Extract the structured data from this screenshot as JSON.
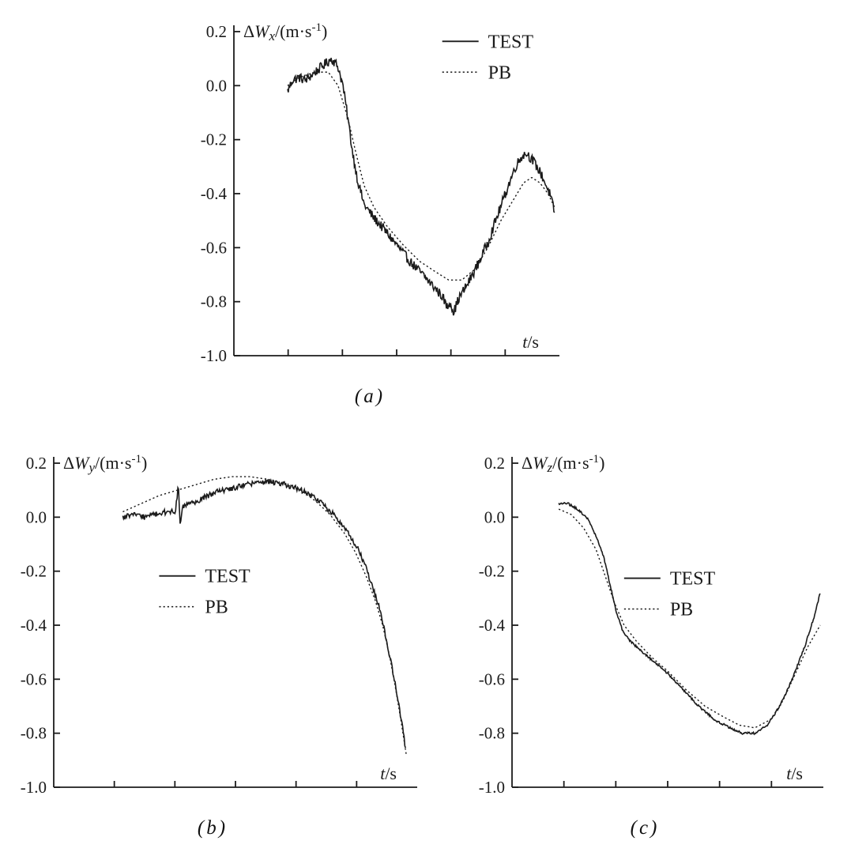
{
  "figure": {
    "background": "#ffffff",
    "line_color": "#1b1b1b"
  },
  "chart_data": [
    {
      "id": "a",
      "type": "line",
      "caption": "(a)",
      "ylabel": {
        "prefix": "Δ",
        "symbol": "W",
        "sub": "x",
        "units_pre": "/(m·s",
        "sup": "-1",
        "units_post": ")"
      },
      "xlabel": {
        "symbol": "t",
        "units": "/s"
      },
      "ylim": [
        -1.0,
        0.2
      ],
      "yticks": [
        "0.2",
        "0.0",
        "-0.2",
        "-0.4",
        "-0.6",
        "-0.8",
        "-1.0"
      ],
      "ytick_values": [
        0.2,
        0.0,
        -0.2,
        -0.4,
        -0.6,
        -0.8,
        -1.0
      ],
      "x_minor_ticks": 5,
      "grid": false,
      "legend": {
        "x": 0.64,
        "y": 0.03,
        "gap": 0.095
      },
      "series": [
        {
          "name": "TEST",
          "style": "solid",
          "noise": 0.018,
          "points": [
            [
              0.165,
              -0.02
            ],
            [
              0.18,
              0.02
            ],
            [
              0.2,
              0.03
            ],
            [
              0.22,
              0.02
            ],
            [
              0.25,
              0.05
            ],
            [
              0.28,
              0.08
            ],
            [
              0.3,
              0.1
            ],
            [
              0.32,
              0.07
            ],
            [
              0.335,
              0.0
            ],
            [
              0.35,
              -0.12
            ],
            [
              0.365,
              -0.25
            ],
            [
              0.38,
              -0.35
            ],
            [
              0.4,
              -0.44
            ],
            [
              0.43,
              -0.49
            ],
            [
              0.46,
              -0.53
            ],
            [
              0.5,
              -0.59
            ],
            [
              0.54,
              -0.65
            ],
            [
              0.58,
              -0.7
            ],
            [
              0.61,
              -0.74
            ],
            [
              0.64,
              -0.78
            ],
            [
              0.655,
              -0.82
            ],
            [
              0.665,
              -0.8
            ],
            [
              0.675,
              -0.84
            ],
            [
              0.69,
              -0.79
            ],
            [
              0.72,
              -0.73
            ],
            [
              0.75,
              -0.66
            ],
            [
              0.78,
              -0.58
            ],
            [
              0.81,
              -0.48
            ],
            [
              0.84,
              -0.38
            ],
            [
              0.865,
              -0.3
            ],
            [
              0.885,
              -0.26
            ],
            [
              0.9,
              -0.25
            ],
            [
              0.92,
              -0.28
            ],
            [
              0.945,
              -0.33
            ],
            [
              0.97,
              -0.4
            ],
            [
              0.985,
              -0.47
            ]
          ]
        },
        {
          "name": "PB",
          "style": "dotted",
          "noise": 0,
          "points": [
            [
              0.165,
              0.0
            ],
            [
              0.2,
              0.03
            ],
            [
              0.25,
              0.05
            ],
            [
              0.29,
              0.05
            ],
            [
              0.32,
              0.0
            ],
            [
              0.35,
              -0.12
            ],
            [
              0.375,
              -0.25
            ],
            [
              0.4,
              -0.37
            ],
            [
              0.43,
              -0.45
            ],
            [
              0.47,
              -0.52
            ],
            [
              0.52,
              -0.59
            ],
            [
              0.57,
              -0.65
            ],
            [
              0.62,
              -0.69
            ],
            [
              0.66,
              -0.72
            ],
            [
              0.7,
              -0.72
            ],
            [
              0.74,
              -0.68
            ],
            [
              0.78,
              -0.6
            ],
            [
              0.82,
              -0.5
            ],
            [
              0.86,
              -0.42
            ],
            [
              0.89,
              -0.36
            ],
            [
              0.915,
              -0.34
            ],
            [
              0.94,
              -0.36
            ],
            [
              0.965,
              -0.4
            ],
            [
              0.985,
              -0.45
            ]
          ]
        }
      ]
    },
    {
      "id": "b",
      "type": "line",
      "caption": "(b)",
      "ylabel": {
        "prefix": "Δ",
        "symbol": "W",
        "sub": "y",
        "units_pre": "/(m·s",
        "sup": "-1",
        "units_post": ")"
      },
      "xlabel": {
        "symbol": "t",
        "units": "/s"
      },
      "ylim": [
        -1.0,
        0.2
      ],
      "yticks": [
        "0.2",
        "0.0",
        "-0.2",
        "-0.4",
        "-0.6",
        "-0.8",
        "-1.0"
      ],
      "ytick_values": [
        0.2,
        0.0,
        -0.2,
        -0.4,
        -0.6,
        -0.8,
        -1.0
      ],
      "x_minor_ticks": 5,
      "grid": false,
      "legend": {
        "x": 0.29,
        "y": 0.348,
        "gap": 0.095
      },
      "series": [
        {
          "name": "TEST",
          "style": "solid",
          "noise": 0.01,
          "points": [
            [
              0.19,
              0.0
            ],
            [
              0.22,
              0.01
            ],
            [
              0.25,
              0.0
            ],
            [
              0.28,
              0.01
            ],
            [
              0.31,
              0.02
            ],
            [
              0.335,
              0.02
            ],
            [
              0.343,
              0.12
            ],
            [
              0.348,
              -0.03
            ],
            [
              0.355,
              0.04
            ],
            [
              0.38,
              0.05
            ],
            [
              0.41,
              0.07
            ],
            [
              0.44,
              0.09
            ],
            [
              0.47,
              0.1
            ],
            [
              0.5,
              0.11
            ],
            [
              0.53,
              0.12
            ],
            [
              0.56,
              0.13
            ],
            [
              0.6,
              0.13
            ],
            [
              0.64,
              0.12
            ],
            [
              0.68,
              0.1
            ],
            [
              0.71,
              0.08
            ],
            [
              0.74,
              0.05
            ],
            [
              0.77,
              0.01
            ],
            [
              0.8,
              -0.04
            ],
            [
              0.83,
              -0.1
            ],
            [
              0.855,
              -0.17
            ],
            [
              0.875,
              -0.25
            ],
            [
              0.895,
              -0.33
            ],
            [
              0.91,
              -0.42
            ],
            [
              0.925,
              -0.52
            ],
            [
              0.94,
              -0.62
            ],
            [
              0.95,
              -0.7
            ],
            [
              0.96,
              -0.78
            ],
            [
              0.968,
              -0.86
            ]
          ]
        },
        {
          "name": "PB",
          "style": "dotted",
          "noise": 0,
          "points": [
            [
              0.19,
              0.02
            ],
            [
              0.24,
              0.05
            ],
            [
              0.29,
              0.08
            ],
            [
              0.34,
              0.1
            ],
            [
              0.39,
              0.12
            ],
            [
              0.44,
              0.14
            ],
            [
              0.49,
              0.15
            ],
            [
              0.54,
              0.15
            ],
            [
              0.59,
              0.14
            ],
            [
              0.64,
              0.12
            ],
            [
              0.68,
              0.1
            ],
            [
              0.72,
              0.06
            ],
            [
              0.76,
              0.01
            ],
            [
              0.8,
              -0.06
            ],
            [
              0.83,
              -0.13
            ],
            [
              0.86,
              -0.22
            ],
            [
              0.885,
              -0.31
            ],
            [
              0.905,
              -0.4
            ],
            [
              0.925,
              -0.52
            ],
            [
              0.94,
              -0.63
            ],
            [
              0.955,
              -0.75
            ],
            [
              0.97,
              -0.88
            ]
          ]
        }
      ]
    },
    {
      "id": "c",
      "type": "line",
      "caption": "(c)",
      "ylabel": {
        "prefix": "Δ",
        "symbol": "W",
        "sub": "z",
        "units_pre": "/(m·s",
        "sup": "-1",
        "units_post": ")"
      },
      "xlabel": {
        "symbol": "t",
        "units": "/s"
      },
      "ylim": [
        -1.0,
        0.2
      ],
      "yticks": [
        "0.2",
        "0.0",
        "-0.2",
        "-0.4",
        "-0.6",
        "-0.8",
        "-1.0"
      ],
      "ytick_values": [
        0.2,
        0.0,
        -0.2,
        -0.4,
        -0.6,
        -0.8,
        -1.0
      ],
      "x_minor_ticks": 5,
      "grid": false,
      "legend": {
        "x": 0.36,
        "y": 0.355,
        "gap": 0.095
      },
      "series": [
        {
          "name": "TEST",
          "style": "solid",
          "noise": 0.004,
          "points": [
            [
              0.15,
              0.05
            ],
            [
              0.18,
              0.05
            ],
            [
              0.21,
              0.03
            ],
            [
              0.24,
              0.0
            ],
            [
              0.27,
              -0.07
            ],
            [
              0.295,
              -0.15
            ],
            [
              0.315,
              -0.25
            ],
            [
              0.335,
              -0.35
            ],
            [
              0.355,
              -0.42
            ],
            [
              0.38,
              -0.46
            ],
            [
              0.42,
              -0.5
            ],
            [
              0.46,
              -0.54
            ],
            [
              0.5,
              -0.58
            ],
            [
              0.55,
              -0.64
            ],
            [
              0.6,
              -0.7
            ],
            [
              0.65,
              -0.75
            ],
            [
              0.7,
              -0.78
            ],
            [
              0.74,
              -0.8
            ],
            [
              0.78,
              -0.8
            ],
            [
              0.82,
              -0.77
            ],
            [
              0.86,
              -0.7
            ],
            [
              0.9,
              -0.6
            ],
            [
              0.94,
              -0.48
            ],
            [
              0.97,
              -0.37
            ],
            [
              0.99,
              -0.28
            ]
          ]
        },
        {
          "name": "PB",
          "style": "dotted",
          "noise": 0,
          "points": [
            [
              0.15,
              0.03
            ],
            [
              0.19,
              0.01
            ],
            [
              0.23,
              -0.04
            ],
            [
              0.27,
              -0.12
            ],
            [
              0.3,
              -0.22
            ],
            [
              0.33,
              -0.32
            ],
            [
              0.36,
              -0.4
            ],
            [
              0.4,
              -0.46
            ],
            [
              0.45,
              -0.52
            ],
            [
              0.5,
              -0.57
            ],
            [
              0.56,
              -0.64
            ],
            [
              0.62,
              -0.7
            ],
            [
              0.68,
              -0.74
            ],
            [
              0.73,
              -0.77
            ],
            [
              0.78,
              -0.78
            ],
            [
              0.83,
              -0.75
            ],
            [
              0.87,
              -0.68
            ],
            [
              0.91,
              -0.58
            ],
            [
              0.95,
              -0.48
            ],
            [
              0.99,
              -0.4
            ]
          ]
        }
      ]
    }
  ]
}
